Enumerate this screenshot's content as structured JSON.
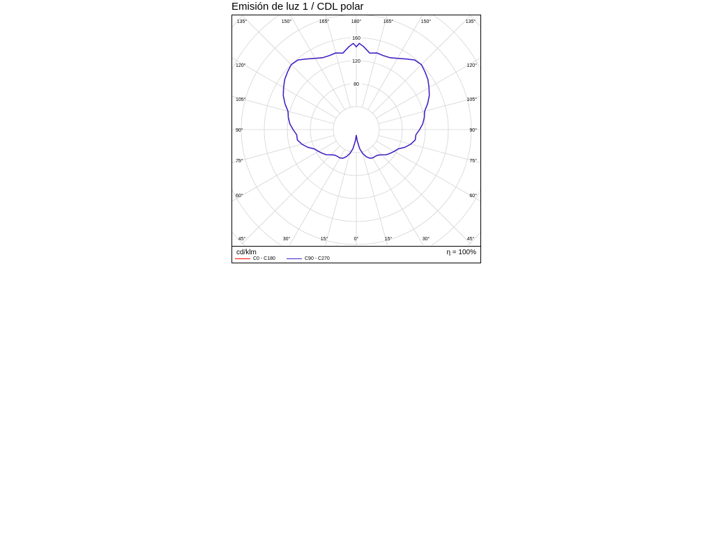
{
  "title": "Emisión de luz 1 / CDL polar",
  "footer": {
    "unit_label": "cd/klm",
    "efficiency": "η = 100%"
  },
  "chart_data": {
    "type": "polar",
    "title": "Emisión de luz 1 / CDL polar",
    "unit": "cd/klm",
    "radial_ticks": [
      80,
      120,
      160
    ],
    "radial_labels": [
      "80",
      "120",
      "160"
    ],
    "radial_max": 200,
    "angle_labels": {
      "top": [
        "135°",
        "150°",
        "165°",
        "180°",
        "165°",
        "150°",
        "135°"
      ],
      "bottom": [
        "45°",
        "30°",
        "15°",
        "0°",
        "15°",
        "30°",
        "45°"
      ],
      "left": [
        "120°",
        "105°",
        "90°",
        "75°",
        "60°"
      ],
      "right": [
        "120°",
        "105°",
        "90°",
        "75°",
        "60°"
      ]
    },
    "series": [
      {
        "name": "C0 - C180",
        "color": "#ff0000",
        "angles": [
          0,
          5,
          10,
          15,
          20,
          25,
          30,
          35,
          40,
          45,
          50,
          55,
          60,
          65,
          70,
          75,
          80,
          85,
          90,
          95,
          100,
          105,
          110,
          115,
          120,
          125,
          130,
          135,
          140,
          145,
          150,
          155,
          160,
          165,
          170,
          175,
          178,
          180
        ],
        "values": [
          10,
          20,
          34,
          43,
          50,
          55,
          57,
          57,
          58,
          62,
          68,
          72,
          76,
          80,
          90,
          98,
          104,
          104,
          110,
          116,
          120,
          123,
          132,
          140,
          146,
          152,
          156,
          160,
          158,
          150,
          143,
          138,
          137,
          138,
          135,
          145,
          150,
          144
        ]
      },
      {
        "name": "C90 - C270",
        "color": "#3a22cc",
        "angles": [
          0,
          5,
          10,
          15,
          20,
          25,
          30,
          35,
          40,
          45,
          50,
          55,
          60,
          65,
          70,
          75,
          80,
          85,
          90,
          95,
          100,
          105,
          110,
          115,
          120,
          125,
          130,
          135,
          140,
          145,
          150,
          155,
          160,
          165,
          170,
          175,
          178,
          180
        ],
        "values": [
          10,
          20,
          34,
          43,
          50,
          55,
          57,
          57,
          58,
          62,
          68,
          72,
          76,
          80,
          90,
          98,
          104,
          104,
          110,
          116,
          120,
          123,
          132,
          140,
          146,
          152,
          156,
          160,
          158,
          150,
          143,
          138,
          137,
          138,
          135,
          145,
          150,
          144
        ]
      }
    ]
  }
}
